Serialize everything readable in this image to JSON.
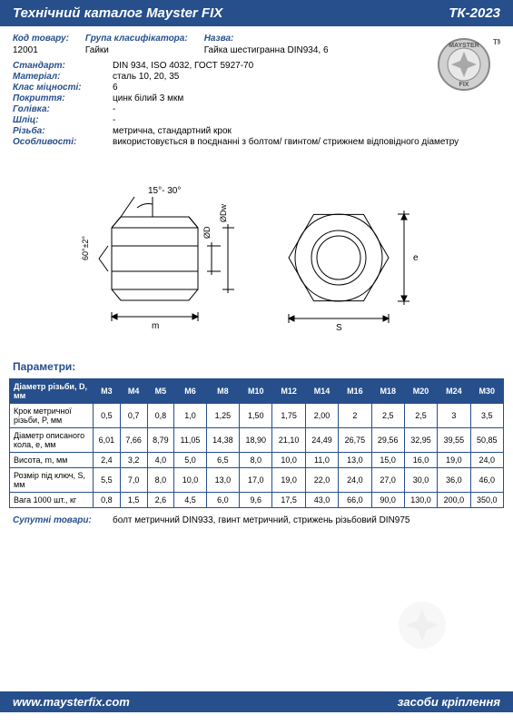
{
  "header": {
    "title": "Технічний каталог Mayster FIX",
    "code": "ТК-2023"
  },
  "info": {
    "code_lbl": "Код товару:",
    "code_val": "12001",
    "group_lbl": "Група класифікатора:",
    "group_val": "Гайки",
    "name_lbl": "Назва:",
    "name_val": "Гайка шестигранна DIN934, 6"
  },
  "specs": [
    {
      "lbl": "Стандарт:",
      "val": "DIN 934, ISO 4032, ГОСТ 5927-70"
    },
    {
      "lbl": "Матеріал:",
      "val": "сталь 10, 20, 35"
    },
    {
      "lbl": "Клас міцності:",
      "val": "6"
    },
    {
      "lbl": "Покриття:",
      "val": "цинк білий 3 мкм"
    },
    {
      "lbl": "Голівка:",
      "val": "-"
    },
    {
      "lbl": "Шліц:",
      "val": "-"
    },
    {
      "lbl": "Різьба:",
      "val": "метрична, стандартний крок"
    },
    {
      "lbl": "Особливості:",
      "val": "використовується в поєднанні з болтом/ гвинтом/ стрижнем відповідного діаметру"
    }
  ],
  "diagram": {
    "angle_label": "15°- 30°",
    "side_angle": "60°±2°",
    "m_label": "m",
    "s_label": "S",
    "d_label": "ØD",
    "dw_label": "ØDw",
    "e_label": "e"
  },
  "params_heading": "Параметри:",
  "table": {
    "header_first": "Діаметр різьби, D, мм",
    "sizes": [
      "M3",
      "M4",
      "M5",
      "M6",
      "M8",
      "M10",
      "M12",
      "M14",
      "M16",
      "M18",
      "M20",
      "M24",
      "M30"
    ],
    "rows": [
      {
        "name": "Крок метричної різьби, P, мм",
        "vals": [
          "0,5",
          "0,7",
          "0,8",
          "1,0",
          "1,25",
          "1,50",
          "1,75",
          "2,00",
          "2",
          "2,5",
          "2,5",
          "3",
          "3,5"
        ]
      },
      {
        "name": "Діаметр описаного кола, e, мм",
        "vals": [
          "6,01",
          "7,66",
          "8,79",
          "11,05",
          "14,38",
          "18,90",
          "21,10",
          "24,49",
          "26,75",
          "29,56",
          "32,95",
          "39,55",
          "50,85"
        ]
      },
      {
        "name": "Висота, m, мм",
        "vals": [
          "2,4",
          "3,2",
          "4,0",
          "5,0",
          "6,5",
          "8,0",
          "10,0",
          "11,0",
          "13,0",
          "15,0",
          "16,0",
          "19,0",
          "24,0"
        ]
      },
      {
        "name": "Розмір під ключ, S, мм",
        "vals": [
          "5,5",
          "7,0",
          "8,0",
          "10,0",
          "13,0",
          "17,0",
          "19,0",
          "22,0",
          "24,0",
          "27,0",
          "30,0",
          "36,0",
          "46,0"
        ]
      },
      {
        "name": "Вага 1000 шт., кг",
        "vals": [
          "0,8",
          "1,5",
          "2,6",
          "4,5",
          "6,0",
          "9,6",
          "17,5",
          "43,0",
          "66,0",
          "90,0",
          "130,0",
          "200,0",
          "350,0"
        ]
      }
    ]
  },
  "related": {
    "lbl": "Супутні товари:",
    "val": "болт метричний DIN933, гвинт метричний, стрижень різьбовий DIN975"
  },
  "footer": {
    "url": "www.maysterfix.com",
    "tagline": "засоби кріплення"
  },
  "colors": {
    "primary": "#264f8c",
    "text": "#000000",
    "bg": "#ffffff"
  },
  "logo_text": {
    "brand": "MAYSTER",
    "sub": "FIX",
    "tm": "TM"
  }
}
